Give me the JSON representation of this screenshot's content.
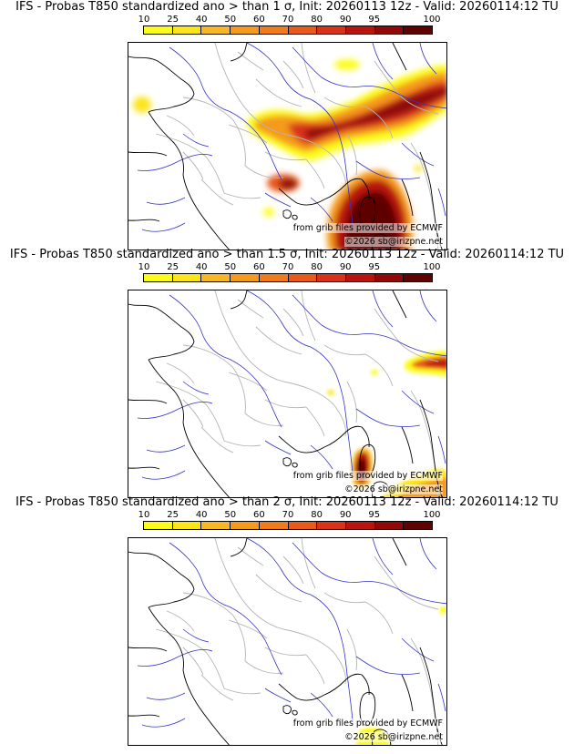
{
  "colorbar": {
    "ticks": [
      "10",
      "25",
      "40",
      "50",
      "60",
      "70",
      "80",
      "90",
      "95",
      "100"
    ],
    "colors": [
      "#fcfc1c",
      "#fce51b",
      "#f8b826",
      "#f49a1f",
      "#ee7b1e",
      "#e85a1c",
      "#d8321a",
      "#b81410",
      "#900808",
      "#5e0202"
    ]
  },
  "map_colors": {
    "coast": "#000000",
    "rivers": "#3333cc",
    "borders": "#b5b5b5"
  },
  "panels": [
    {
      "title": "IFS - Probas T850  standardized ano > than 1 σ, Init: 20260113 12z - Valid: 20260114:12 TU",
      "threshold_sigma": "1",
      "credit_source": "from grib files provided by ECMWF",
      "credit_copyright": "©2026 sb@irizpne.net"
    },
    {
      "title": "IFS - Probas T850  standardized ano > than 1.5 σ, Init: 20260113 12z - Valid: 20260114:12 TU",
      "threshold_sigma": "1.5",
      "credit_source": "from grib files provided by ECMWF",
      "credit_copyright": "©2026 sb@irizpne.net"
    },
    {
      "title": "IFS - Probas T850  standardized ano > than 2 σ, Init: 20260113 12z - Valid: 20260114:12 TU",
      "threshold_sigma": "2",
      "credit_source": "from grib files provided by ECMWF",
      "credit_copyright": "©2026 sb@irizpne.net"
    }
  ]
}
